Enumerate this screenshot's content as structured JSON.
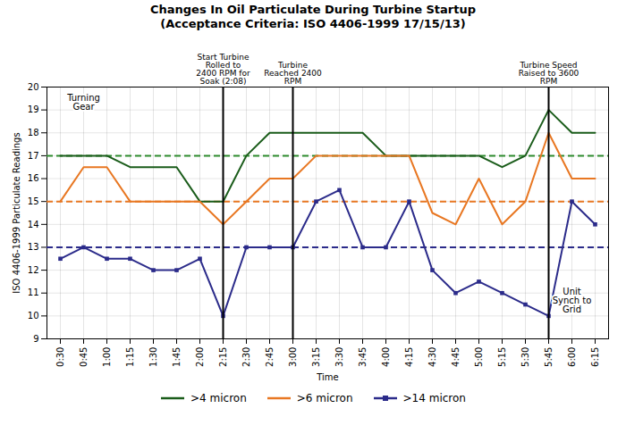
{
  "chart_data": {
    "type": "line",
    "title": "Changes In Oil Particulate During Turbine Startup",
    "subtitle": "(Acceptance Criteria: ISO 4406-1999 17/15/13)",
    "xlabel": "Time",
    "ylabel": "ISO 4406-1999 Particulate Readings",
    "categories": [
      "0:30",
      "0:45",
      "1:00",
      "1:15",
      "1:30",
      "1:45",
      "2:00",
      "2:15",
      "2:30",
      "2:45",
      "3:00",
      "3:15",
      "3:30",
      "3:45",
      "4:00",
      "4:15",
      "4:30",
      "4:45",
      "5:00",
      "5:15",
      "5:30",
      "5:45",
      "6:00",
      "6:15"
    ],
    "series": [
      {
        "name": ">4 micron",
        "color": "#1a5c1a",
        "values": [
          17,
          17,
          17,
          16.5,
          16.5,
          16.5,
          15,
          15,
          17,
          18,
          18,
          18,
          18,
          18,
          17,
          17,
          17,
          17,
          17,
          16.5,
          17,
          19,
          18,
          18
        ]
      },
      {
        "name": ">6 micron",
        "color": "#e87722",
        "values": [
          15,
          16.5,
          16.5,
          15,
          15,
          15,
          15,
          14,
          15,
          16,
          16,
          17,
          17,
          17,
          17,
          17,
          14.5,
          14,
          16,
          14,
          15,
          18,
          16,
          16
        ]
      },
      {
        "name": ">14 micron",
        "color": "#2b2b8a",
        "marker": "square",
        "values": [
          12.5,
          13,
          12.5,
          12.5,
          12,
          12,
          12.5,
          10,
          13,
          13,
          13,
          15,
          15.5,
          13,
          13,
          15,
          12,
          11,
          11.5,
          11,
          10.5,
          10,
          15,
          14
        ]
      }
    ],
    "ylim": [
      9,
      20
    ],
    "yticks": [
      9,
      10,
      11,
      12,
      13,
      14,
      15,
      16,
      17,
      18,
      19,
      20
    ],
    "grid": true,
    "legend": "bottom",
    "reference_lines": [
      {
        "y": 17,
        "color": "#2e8b2e",
        "line_style": "dashed"
      },
      {
        "y": 15,
        "color": "#e87722",
        "line_style": "dashed"
      },
      {
        "y": 13,
        "color": "#2b2b8a",
        "line_style": "dashed"
      }
    ],
    "event_lines": [
      {
        "x": "2:15",
        "color": "#000000",
        "label": "Start Turbine\nRolled to\n2400 RPM for\nSoak (2:08)"
      },
      {
        "x": "3:00",
        "color": "#000000",
        "label": "Turbine\nReached 2400\nRPM"
      },
      {
        "x": "5:45",
        "color": "#000000",
        "label": "Turbine Speed\nRaised to 3600\nRPM"
      }
    ],
    "annotations": [
      {
        "text": "Turning\nGear",
        "x": "0:45",
        "anchor": "top"
      },
      {
        "text": "Unit\nSynch to\nGrid",
        "x": "6:00",
        "anchor": "bottom"
      }
    ]
  }
}
